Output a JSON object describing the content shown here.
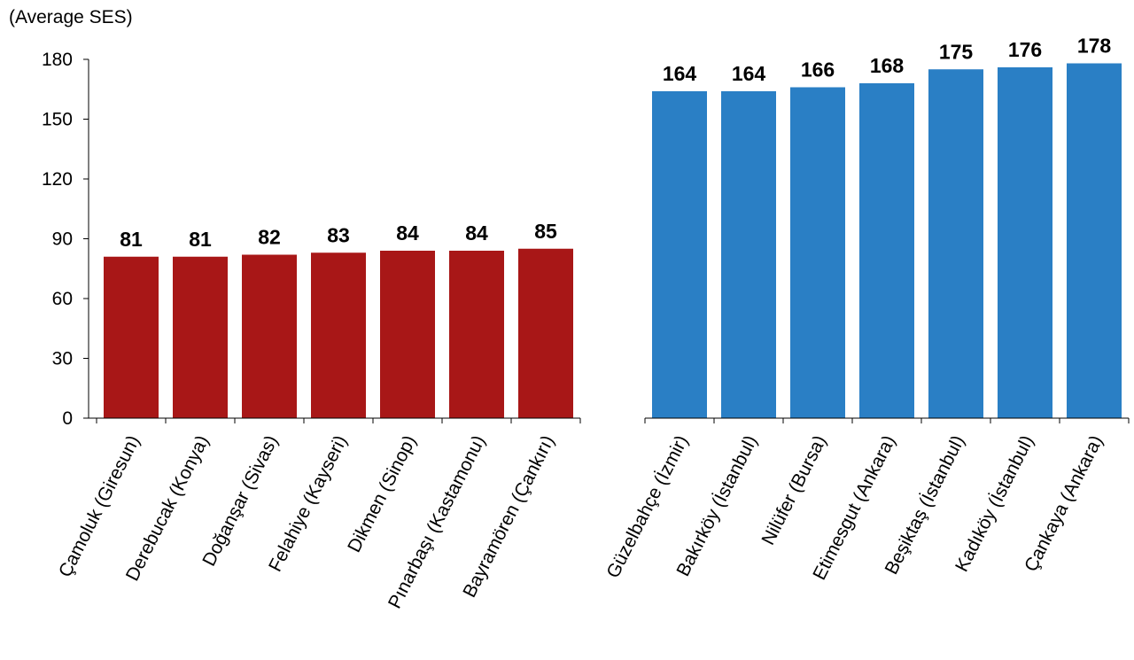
{
  "chart_data": {
    "type": "bar",
    "ylabel": "(Average SES)",
    "ylim": [
      0,
      180
    ],
    "yticks": [
      0,
      30,
      60,
      90,
      120,
      150,
      180
    ],
    "grid": false,
    "series": [
      {
        "color": "#A81717",
        "categories": [
          "Çamoluk (Giresun)",
          "Derebucak (Konya)",
          "Doğanşar (Sivas)",
          "Felahiye (Kayseri)",
          "Dikmen (Sinop)",
          "Pınarbaşı (Kastamonu)",
          "Bayramören (Çankırı)"
        ],
        "values": [
          81,
          81,
          82,
          83,
          84,
          84,
          85
        ]
      },
      {
        "color": "#2A7FC5",
        "categories": [
          "Güzelbahçe (İzmir)",
          "Bakırköy (İstanbul)",
          "Nilüfer (Bursa)",
          "Etimesgut (Ankara)",
          "Beşiktaş (İstanbul)",
          "Kadıköy (İstanbul)",
          "Çankaya (Ankara)"
        ],
        "values": [
          164,
          164,
          166,
          168,
          175,
          176,
          178
        ]
      }
    ]
  }
}
